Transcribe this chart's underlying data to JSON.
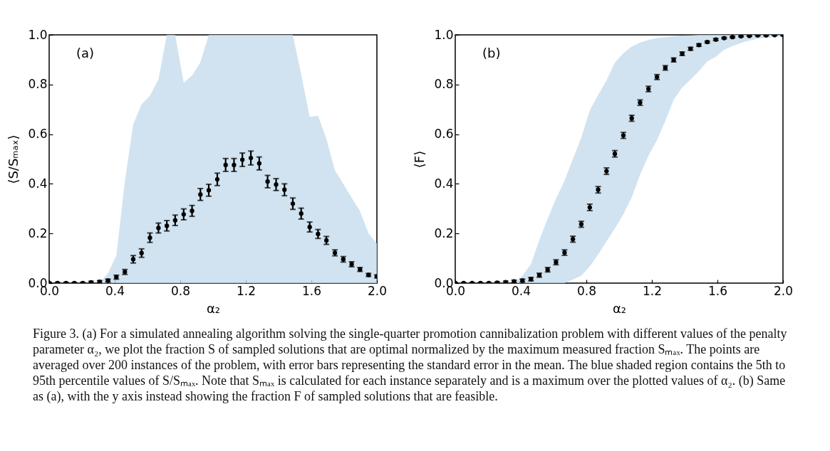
{
  "chart_data": [
    {
      "type": "scatter",
      "xlabel": "α₂",
      "ylabel": "⟨S/Sₘₐₓ⟩",
      "x": [
        0,
        0.051,
        0.103,
        0.154,
        0.205,
        0.256,
        0.308,
        0.359,
        0.41,
        0.462,
        0.513,
        0.564,
        0.615,
        0.667,
        0.718,
        0.769,
        0.821,
        0.872,
        0.923,
        0.974,
        1.026,
        1.077,
        1.128,
        1.179,
        1.231,
        1.282,
        1.333,
        1.385,
        1.436,
        1.487,
        1.538,
        1.59,
        1.641,
        1.692,
        1.744,
        1.795,
        1.846,
        1.897,
        1.949,
        2.0
      ],
      "series": [
        {
          "color": "#000000",
          "values": [
            0,
            0,
            0,
            0,
            0,
            0.003,
            0.005,
            0.01,
            0.024,
            0.045,
            0.096,
            0.121,
            0.183,
            0.222,
            0.231,
            0.253,
            0.277,
            0.291,
            0.357,
            0.374,
            0.418,
            0.476,
            0.476,
            0.497,
            0.504,
            0.482,
            0.409,
            0.397,
            0.376,
            0.32,
            0.28,
            0.226,
            0.198,
            0.172,
            0.122,
            0.096,
            0.076,
            0.055,
            0.033,
            0.027
          ],
          "errors": [
            0.003,
            0.003,
            0.003,
            0.003,
            0.003,
            0.004,
            0.005,
            0.006,
            0.008,
            0.01,
            0.015,
            0.017,
            0.019,
            0.02,
            0.021,
            0.021,
            0.022,
            0.022,
            0.024,
            0.024,
            0.025,
            0.026,
            0.026,
            0.027,
            0.028,
            0.026,
            0.025,
            0.024,
            0.024,
            0.023,
            0.022,
            0.02,
            0.018,
            0.016,
            0.012,
            0.011,
            0.01,
            0.008,
            0.006,
            0.006
          ],
          "lower": [
            0,
            0,
            0,
            0,
            0,
            0,
            0,
            0,
            0,
            0,
            0,
            0,
            0,
            0,
            0,
            0,
            0,
            0,
            0,
            0,
            0,
            0,
            0,
            0,
            0,
            0,
            0,
            0,
            0,
            0,
            0,
            0,
            0,
            0,
            0,
            0,
            0,
            0,
            0,
            0
          ],
          "upper": [
            0,
            0,
            0,
            0,
            0,
            0,
            0,
            0.04,
            0.11,
            0.41,
            0.64,
            0.72,
            0.755,
            0.82,
            1.0,
            1.0,
            0.807,
            0.836,
            0.89,
            1.0,
            1.0,
            1.0,
            1.0,
            1.0,
            1.0,
            1.0,
            1.0,
            1.0,
            1.0,
            1.0,
            0.84,
            0.67,
            0.674,
            0.58,
            0.454,
            0.4,
            0.344,
            0.29,
            0.2,
            0.16
          ]
        }
      ],
      "xlim": [
        0,
        2.0
      ],
      "xticks": [
        {
          "value": 0,
          "label": "0.0"
        },
        {
          "value": 0.4,
          "label": "0.4"
        },
        {
          "value": 0.8,
          "label": "0.8"
        },
        {
          "value": 1.2,
          "label": "1.2"
        },
        {
          "value": 1.6,
          "label": "1.6"
        },
        {
          "value": 2.0,
          "label": "2.0"
        }
      ],
      "ylim": [
        0,
        1.0
      ],
      "yticks": [
        {
          "value": 0,
          "label": "0.0"
        },
        {
          "value": 0.2,
          "label": "0.2"
        },
        {
          "value": 0.4,
          "label": "0.4"
        },
        {
          "value": 0.6,
          "label": "0.6"
        },
        {
          "value": 0.8,
          "label": "0.8"
        },
        {
          "value": 1.0,
          "label": "1.0"
        }
      ],
      "grid": false,
      "marker": "circle",
      "annotations": [
        "(a)",
        "Figure 3. (a) For a simulated annealing algorithm solving the single-quarter promotion cannibalization problem with different values of the penalty parameter α₂, we plot the fraction S of sampled solutions that are optimal normalized by the maximum measured fraction Sₘₐₓ. The points are averaged over 200 instances of the problem, with error bars representing the standard error in the mean. The blue shaded region contains the 5th to 95th percentile values of S/Sₘₐₓ. Note that Sₘₐₓ is calculated for each instance separately and is a maximum over the plotted values of α₂. (b) Same as (a), with the y axis instead showing the fraction F of sampled solutions that are feasible."
      ]
    },
    {
      "type": "scatter",
      "xlabel": "α₂",
      "ylabel": "⟨F⟩",
      "x": [
        0,
        0.051,
        0.103,
        0.154,
        0.205,
        0.256,
        0.308,
        0.359,
        0.41,
        0.462,
        0.513,
        0.564,
        0.615,
        0.667,
        0.718,
        0.769,
        0.821,
        0.872,
        0.923,
        0.974,
        1.026,
        1.077,
        1.128,
        1.179,
        1.231,
        1.282,
        1.333,
        1.385,
        1.436,
        1.487,
        1.538,
        1.59,
        1.641,
        1.692,
        1.744,
        1.795,
        1.846,
        1.897,
        1.949,
        2.0
      ],
      "series": [
        {
          "color": "#000000",
          "values": [
            0,
            0,
            0,
            0,
            0,
            0.002,
            0.004,
            0.007,
            0.01,
            0.016,
            0.032,
            0.054,
            0.084,
            0.123,
            0.177,
            0.237,
            0.305,
            0.376,
            0.451,
            0.521,
            0.595,
            0.664,
            0.727,
            0.782,
            0.83,
            0.867,
            0.899,
            0.924,
            0.944,
            0.959,
            0.971,
            0.981,
            0.987,
            0.991,
            0.994,
            0.996,
            0.998,
            0.998,
            0.999,
            0.999
          ],
          "errors": [
            0.002,
            0.002,
            0.002,
            0.002,
            0.002,
            0.003,
            0.004,
            0.005,
            0.006,
            0.007,
            0.008,
            0.009,
            0.01,
            0.011,
            0.012,
            0.012,
            0.013,
            0.013,
            0.013,
            0.013,
            0.012,
            0.012,
            0.011,
            0.011,
            0.01,
            0.009,
            0.008,
            0.007,
            0.006,
            0.005,
            0.004,
            0.004,
            0.003,
            0.003,
            0.002,
            0.002,
            0.002,
            0.002,
            0.001,
            0.001
          ],
          "lower": [
            0,
            0,
            0,
            0,
            0,
            0,
            0,
            0,
            0,
            0,
            0,
            0,
            0,
            0,
            0.014,
            0.03,
            0.067,
            0.115,
            0.168,
            0.22,
            0.278,
            0.345,
            0.437,
            0.513,
            0.576,
            0.653,
            0.739,
            0.787,
            0.82,
            0.854,
            0.893,
            0.912,
            0.94,
            0.955,
            0.967,
            0.977,
            0.984,
            0.988,
            0.991,
            0.993
          ],
          "upper": [
            0,
            0,
            0,
            0,
            0,
            0,
            0,
            0,
            0.03,
            0.077,
            0.173,
            0.26,
            0.34,
            0.413,
            0.5,
            0.585,
            0.696,
            0.758,
            0.816,
            0.888,
            0.926,
            0.953,
            0.969,
            0.979,
            0.987,
            0.991,
            0.995,
            0.997,
            0.998,
            1.0,
            1.0,
            1.0,
            1.0,
            1.0,
            1.0,
            1.0,
            1.0,
            1.0,
            1.0,
            1.0
          ]
        }
      ],
      "xlim": [
        0,
        2.0
      ],
      "xticks": [
        {
          "value": 0,
          "label": "0.0"
        },
        {
          "value": 0.4,
          "label": "0.4"
        },
        {
          "value": 0.8,
          "label": "0.8"
        },
        {
          "value": 1.2,
          "label": "1.2"
        },
        {
          "value": 1.6,
          "label": "1.6"
        },
        {
          "value": 2.0,
          "label": "2.0"
        }
      ],
      "ylim": [
        0,
        1.0
      ],
      "yticks": [
        {
          "value": 0,
          "label": "0.0"
        },
        {
          "value": 0.2,
          "label": "0.2"
        },
        {
          "value": 0.4,
          "label": "0.4"
        },
        {
          "value": 0.6,
          "label": "0.6"
        },
        {
          "value": 0.8,
          "label": "0.8"
        },
        {
          "value": 1.0,
          "label": "1.0"
        }
      ],
      "grid": false,
      "marker": "circle",
      "annotations": [
        "(b)"
      ]
    }
  ]
}
